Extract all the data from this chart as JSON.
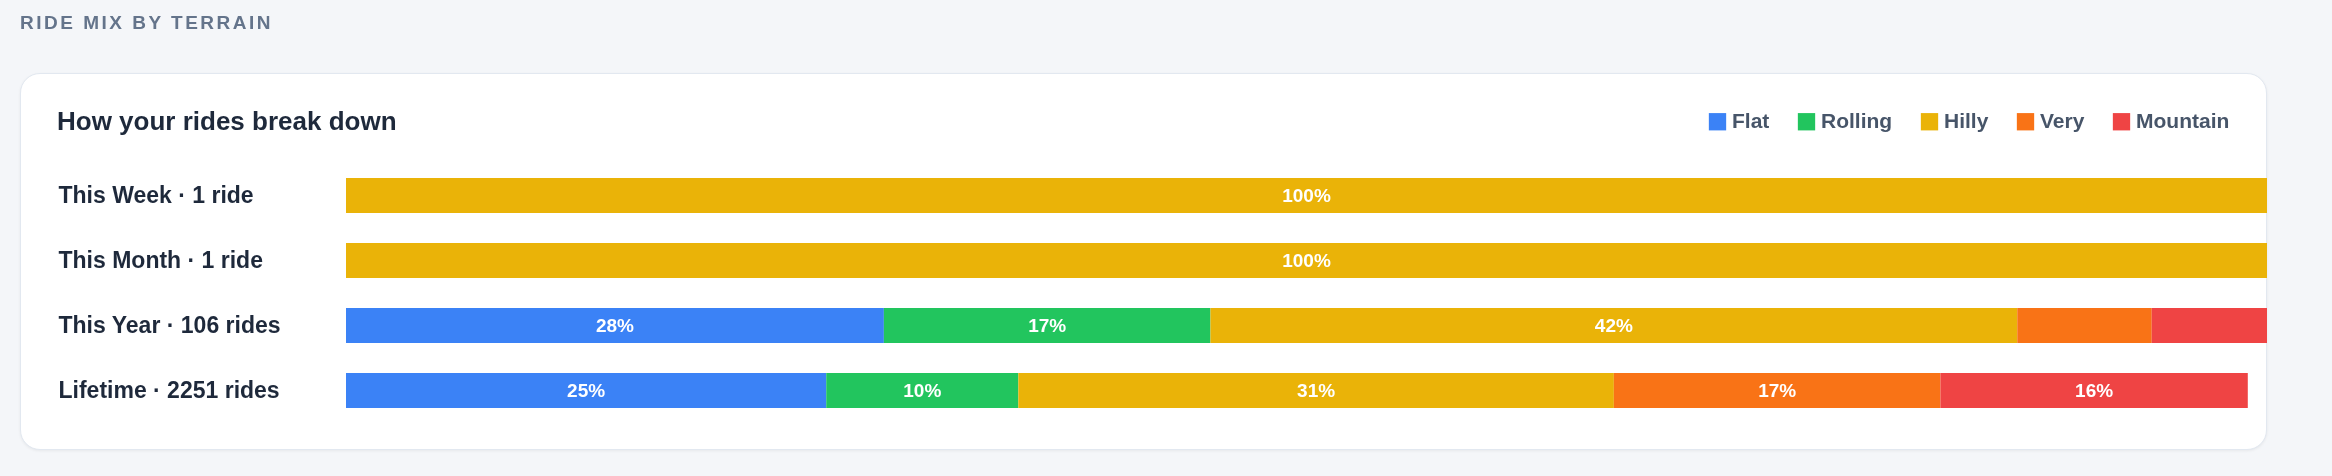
{
  "chart_data": {
    "type": "bar",
    "orientation": "horizontal",
    "stacked": true,
    "title": "RIDE MIX BY TERRAIN",
    "subtitle": "How your rides break down",
    "categories": [
      "This Week · 1 ride",
      "This Month · 1 ride",
      "This Year · 106 rides",
      "Lifetime · 2251 rides"
    ],
    "xlim": [
      0,
      100
    ],
    "tick_labels": "y",
    "legend": "top right",
    "series": [
      {
        "name": "Flat",
        "color": "#3b82f6",
        "values": [
          0,
          0,
          28,
          25
        ],
        "value_labels": [
          null,
          null,
          "28%",
          "25%"
        ]
      },
      {
        "name": "Rolling",
        "color": "#22c55e",
        "values": [
          0,
          0,
          17,
          10
        ],
        "value_labels": [
          null,
          null,
          "17%",
          "10%"
        ]
      },
      {
        "name": "Hilly",
        "color": "#eab308",
        "values": [
          100,
          100,
          42,
          31
        ],
        "value_labels": [
          "100%",
          "100%",
          "42%",
          "31%"
        ]
      },
      {
        "name": "Very",
        "color": "#f97316",
        "values": [
          0,
          0,
          7,
          17
        ],
        "value_labels": [
          null,
          null,
          null,
          "17%"
        ]
      },
      {
        "name": "Mountain",
        "color": "#ef4444",
        "values": [
          0,
          0,
          6,
          16
        ],
        "value_labels": [
          null,
          null,
          null,
          "16%"
        ]
      }
    ]
  }
}
